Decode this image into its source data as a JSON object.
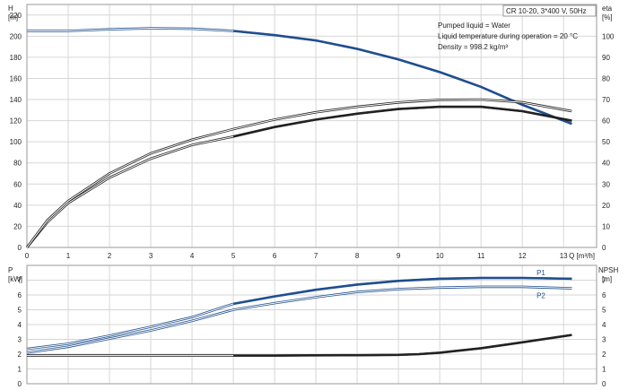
{
  "chart_data": [
    {
      "type": "line",
      "title": "CR 10-20, 3*400 V, 50Hz",
      "info_lines": [
        "Pumped liquid = Water",
        "Liquid temperature during operation = 20 °C",
        "Density = 998.2 kg/m³"
      ],
      "xlabel": "Q [m³/h]",
      "xlim": [
        0,
        13.8
      ],
      "x_ticks": [
        "0",
        "1",
        "2",
        "3",
        "4",
        "5",
        "6",
        "7",
        "8",
        "9",
        "10",
        "11",
        "12",
        "13"
      ],
      "ylabel_left": "H",
      "ylabel_left_unit": "[m]",
      "ylim_left": [
        0,
        230
      ],
      "y_ticks_left": [
        "0",
        "20",
        "40",
        "60",
        "80",
        "100",
        "120",
        "140",
        "160",
        "180",
        "200",
        "220"
      ],
      "ylabel_right": "eta",
      "ylabel_right_unit": "[%]",
      "ylim_right": [
        0,
        115
      ],
      "y_ticks_right": [
        "0",
        "10",
        "20",
        "30",
        "40",
        "50",
        "60",
        "70",
        "80",
        "90",
        "100"
      ],
      "grid": true,
      "series": [
        {
          "axis": "left",
          "color": "#1f4f8f",
          "x": [
            0,
            1,
            2,
            3,
            4,
            5,
            6,
            7,
            8,
            9,
            10,
            11,
            12,
            13.2
          ],
          "y": [
            205,
            205,
            206.5,
            207.5,
            207,
            205,
            201,
            196,
            188,
            178,
            166,
            152,
            135,
            117
          ],
          "bold_from_x": 5
        },
        {
          "axis": "right",
          "x": [
            0,
            0.5,
            1,
            2,
            3,
            4,
            5,
            6,
            7,
            8,
            9,
            10,
            11,
            12,
            13.2
          ],
          "y": [
            0,
            12,
            21,
            33,
            42,
            48.5,
            52.5,
            57,
            60.5,
            63.3,
            65.5,
            66.6,
            66.6,
            64.5,
            60
          ],
          "bold_from_x": 5
        },
        {
          "axis": "right",
          "x": [
            0,
            0.5,
            1,
            2,
            3,
            4,
            5,
            6,
            7,
            8,
            9,
            10,
            11,
            12,
            13.2
          ],
          "y": [
            0,
            13,
            22,
            35,
            44.5,
            51,
            56,
            60.5,
            64,
            66.6,
            68.6,
            69.9,
            70,
            68.7,
            64.5
          ],
          "bold_from_x": null
        }
      ]
    },
    {
      "type": "line",
      "ylabel_left": "P",
      "ylabel_left_unit": "[kW]",
      "ylim_left": [
        0,
        8
      ],
      "y_ticks_left": [
        "0",
        "1",
        "2",
        "3",
        "4",
        "5",
        "6",
        "7"
      ],
      "ylabel_right": "NPSH",
      "ylabel_right_unit": "[m]",
      "ylim_right": [
        0,
        8
      ],
      "y_ticks_right": [
        "0",
        "1",
        "2",
        "3",
        "4",
        "5",
        "6",
        "7"
      ],
      "grid": true,
      "series": [
        {
          "name": "P1",
          "axis": "left",
          "color": "#1f4f8f",
          "x": [
            0,
            1,
            2,
            3,
            4,
            5,
            6,
            7,
            8,
            9,
            10,
            11,
            12,
            13.2
          ],
          "y": [
            2.35,
            2.7,
            3.25,
            3.85,
            4.5,
            5.4,
            5.9,
            6.35,
            6.7,
            6.95,
            7.1,
            7.15,
            7.15,
            7.1
          ],
          "bold_from_x": 5
        },
        {
          "name": "P2",
          "axis": "left",
          "color": "#1f4f8f",
          "x": [
            0,
            1,
            2,
            3,
            4,
            5,
            6,
            7,
            8,
            9,
            10,
            11,
            12,
            13.2
          ],
          "y": [
            2.1,
            2.5,
            3.05,
            3.6,
            4.25,
            5.0,
            5.45,
            5.85,
            6.2,
            6.4,
            6.5,
            6.55,
            6.55,
            6.45
          ],
          "bold_from_x": null
        },
        {
          "axis": "right",
          "x": [
            0,
            1,
            2,
            3,
            4,
            5,
            6,
            7,
            8,
            9,
            9.5,
            10,
            11,
            12,
            13.2
          ],
          "y": [
            1.9,
            1.9,
            1.9,
            1.9,
            1.9,
            1.9,
            1.9,
            1.92,
            1.93,
            1.95,
            2.0,
            2.1,
            2.4,
            2.8,
            3.3
          ],
          "bold_from_x": 5
        }
      ]
    }
  ]
}
